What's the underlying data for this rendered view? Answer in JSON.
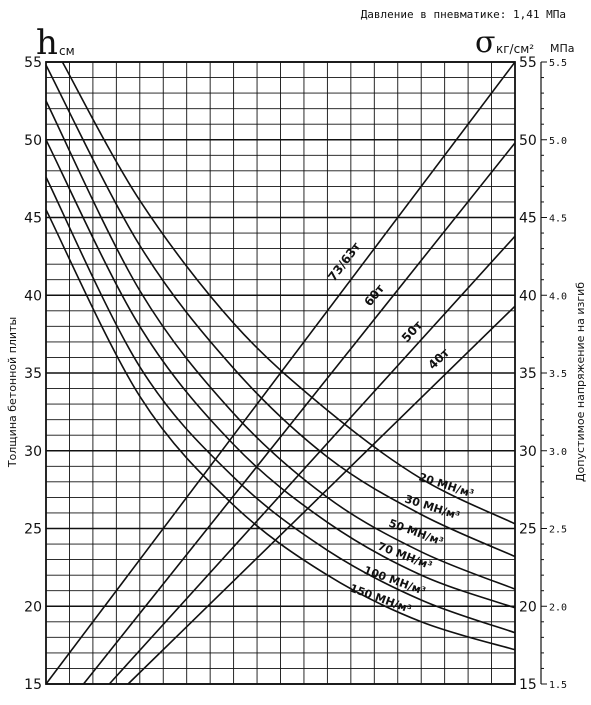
{
  "header": {
    "pressure_label": "Давление в пневматике: 1,41 МПа"
  },
  "left_axis": {
    "symbol": "h",
    "unit": "см",
    "ylabel": "Толщина бетонной плиты"
  },
  "right_axis": {
    "symbol": "σ",
    "unit": "кг/см²",
    "unit_mpa": "МПа",
    "ylabel": "Допустимое напряжение на изгиб"
  },
  "chart_data": {
    "type": "line",
    "title": "",
    "x_range": [
      0,
      20
    ],
    "x_gridlines": 20,
    "ylim": [
      15,
      55
    ],
    "y_grid_step": 1,
    "left_ticks": [
      "55",
      "50",
      "45",
      "40",
      "35",
      "30",
      "25",
      "20",
      "15"
    ],
    "right_ticks_kg": [
      "55",
      "50",
      "45",
      "40",
      "35",
      "30",
      "25",
      "20",
      "15"
    ],
    "right_ticks_mpa": [
      "5.5",
      "5.0",
      "4.5",
      "4.0",
      "3.5",
      "3.0",
      "2.5",
      "2.0",
      "1.5"
    ],
    "load_lines": [
      {
        "label": "73/63т",
        "x": [
          0.0,
          20.0
        ],
        "y": [
          15.0,
          55.0
        ]
      },
      {
        "label": "60т",
        "x": [
          1.6,
          20.0
        ],
        "y": [
          15.0,
          49.8
        ]
      },
      {
        "label": "50т",
        "x": [
          2.7,
          20.0
        ],
        "y": [
          15.0,
          43.8
        ]
      },
      {
        "label": "40т",
        "x": [
          3.5,
          20.0
        ],
        "y": [
          15.0,
          39.3
        ]
      }
    ],
    "modulus_curves": [
      {
        "label": "20 МН/м³",
        "x": [
          0.7,
          4,
          8,
          12,
          16,
          20
        ],
        "y": [
          55.0,
          46.1,
          38.2,
          32.6,
          28.2,
          25.3
        ]
      },
      {
        "label": "30 МН/м³",
        "x": [
          0,
          4,
          8,
          12,
          16,
          20
        ],
        "y": [
          54.8,
          43.2,
          35.3,
          29.6,
          25.9,
          23.2
        ]
      },
      {
        "label": "50 МН/м³",
        "x": [
          0,
          4,
          8,
          12,
          16,
          20
        ],
        "y": [
          52.5,
          40.3,
          32.4,
          27.0,
          23.5,
          21.1
        ]
      },
      {
        "label": "70 МН/м³",
        "x": [
          0,
          4,
          8,
          12,
          16,
          20
        ],
        "y": [
          50.0,
          38.0,
          30.4,
          25.4,
          22.0,
          19.9
        ]
      },
      {
        "label": "100 МН/м³",
        "x": [
          0,
          4,
          8,
          12,
          16,
          20
        ],
        "y": [
          47.6,
          35.4,
          28.3,
          23.6,
          20.4,
          18.3
        ]
      },
      {
        "label": "150 МН/м³",
        "x": [
          0,
          4,
          8,
          12,
          16,
          20
        ],
        "y": [
          45.5,
          33.5,
          26.5,
          22.0,
          19.0,
          17.2
        ]
      }
    ]
  }
}
